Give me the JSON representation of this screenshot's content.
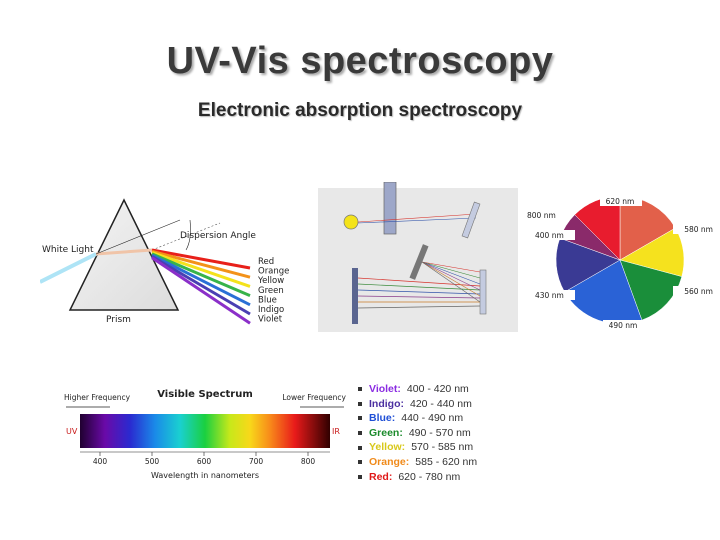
{
  "slide": {
    "title": "UV-Vis spectroscopy",
    "subtitle": "Electronic absorption spectroscopy"
  },
  "prism": {
    "white_light_label": "White Light",
    "dispersion_label": "Dispersion Angle",
    "prism_label": "Prism",
    "ray_colors": [
      "#e8201a",
      "#f39219",
      "#f4e21c",
      "#37b34a",
      "#2a6fd6",
      "#4a3fb3",
      "#8b2fc9"
    ],
    "rainbow_labels": [
      "Red",
      "Orange",
      "Yellow",
      "Green",
      "Blue",
      "Indigo",
      "Violet"
    ]
  },
  "spectrophotometer": {
    "beam_colors": [
      "#d6332c",
      "#3a8a3a",
      "#3355aa",
      "#8a3c8a",
      "#c77b2a",
      "#666666"
    ]
  },
  "color_wheel": {
    "segment_colors": [
      "#e2604a",
      "#f5e21e",
      "#1a8e3a",
      "#2a62d6",
      "#3a3a94",
      "#8a2a6a",
      "#e81c2e"
    ],
    "labels": [
      "620 nm",
      "800 nm",
      "580 nm",
      "400 nm",
      "560 nm",
      "430 nm",
      "490 nm"
    ]
  },
  "spectrum_chart": {
    "title": "Visible Spectrum",
    "left_label": "Higher Frequency",
    "right_label": "Lower Frequency",
    "uv_label": "UV",
    "ir_label": "IR",
    "xlabel": "Wavelength in nanometers",
    "ticks": [
      "400",
      "500",
      "600",
      "700",
      "800"
    ]
  },
  "legend": [
    {
      "name": "Violet:",
      "range": "400 - 420 nm",
      "color": "#8a2be2"
    },
    {
      "name": "Indigo:",
      "range": "420 - 440 nm",
      "color": "#4b2fa0"
    },
    {
      "name": "Blue:",
      "range": "440 - 490 nm",
      "color": "#1f4fd6"
    },
    {
      "name": "Green:",
      "range": "490 - 570 nm",
      "color": "#1a8a2a"
    },
    {
      "name": "Yellow:",
      "range": "570 - 585 nm",
      "color": "#d8c81a"
    },
    {
      "name": "Orange:",
      "range": "585 - 620 nm",
      "color": "#f08a1a"
    },
    {
      "name": "Red:",
      "range": "620 - 780 nm",
      "color": "#e01818"
    }
  ]
}
